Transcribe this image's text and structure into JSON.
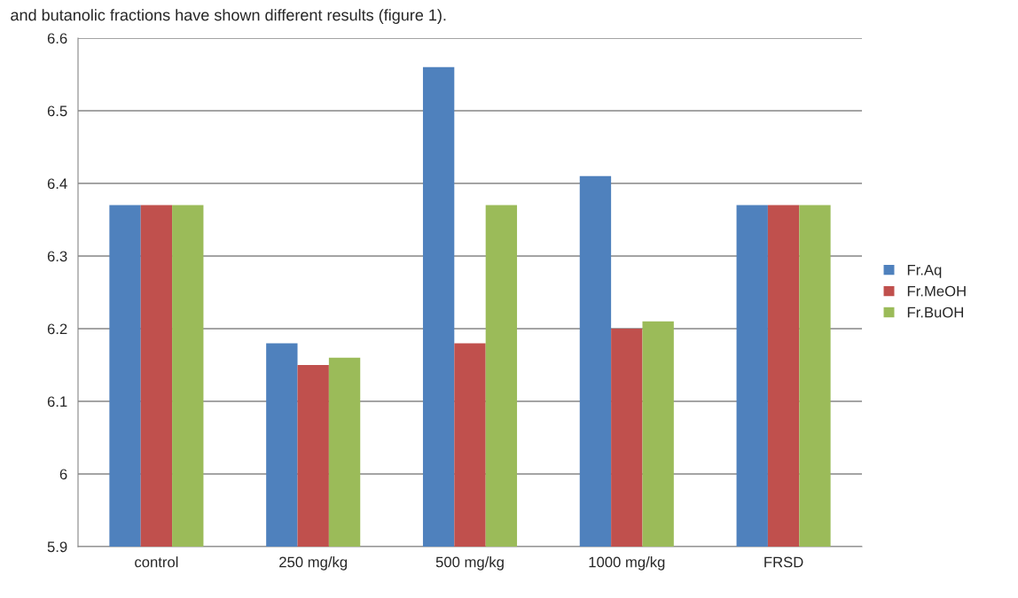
{
  "chart_data": {
    "type": "bar",
    "annotations": [
      "and butanolic fractions have shown different results (figure 1)."
    ],
    "categories": [
      "control",
      "250 mg/kg",
      "500 mg/kg",
      "1000 mg/kg",
      "FRSD"
    ],
    "series": [
      {
        "name": "Fr.Aq",
        "color": "#4f81bd",
        "values": [
          6.37,
          6.18,
          6.56,
          6.41,
          6.37
        ]
      },
      {
        "name": "Fr.MeOH",
        "color": "#c0504d",
        "values": [
          6.37,
          6.15,
          6.18,
          6.2,
          6.37
        ]
      },
      {
        "name": "Fr.BuOH",
        "color": "#9bbb59",
        "values": [
          6.37,
          6.16,
          6.37,
          6.21,
          6.37
        ]
      }
    ],
    "ylim": [
      5.9,
      6.6
    ],
    "yticks": [
      {
        "value": 5.9,
        "label": "5.9"
      },
      {
        "value": 6.0,
        "label": "6"
      },
      {
        "value": 6.1,
        "label": "6.1"
      },
      {
        "value": 6.2,
        "label": "6.2"
      },
      {
        "value": 6.3,
        "label": "6.3"
      },
      {
        "value": 6.4,
        "label": "6.4"
      },
      {
        "value": 6.5,
        "label": "6.5"
      },
      {
        "value": 6.6,
        "label": "6.6"
      }
    ],
    "grid": "y",
    "legend": "right"
  }
}
